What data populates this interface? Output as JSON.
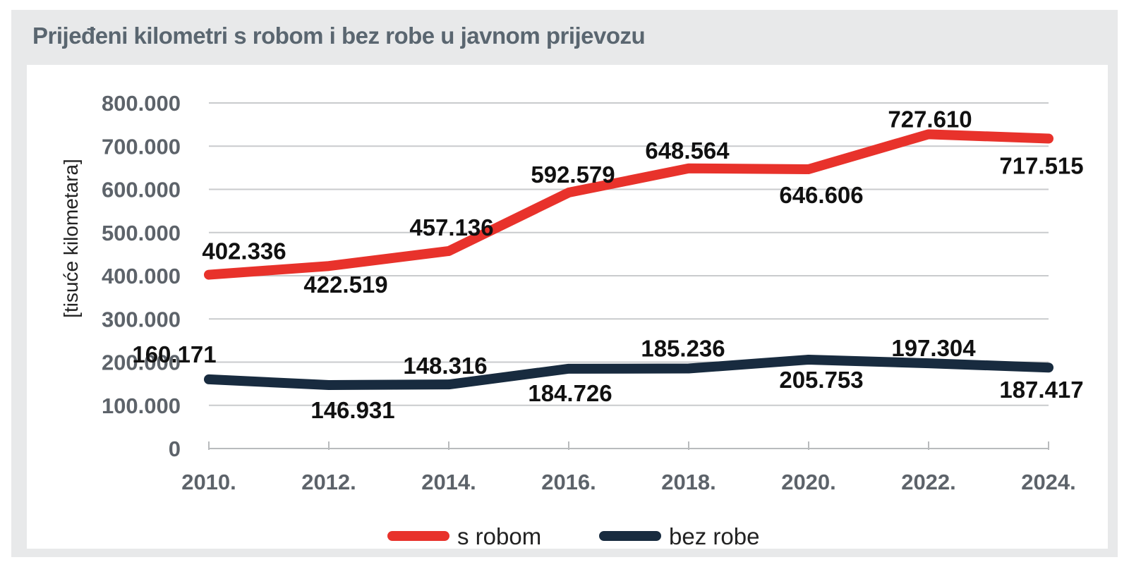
{
  "title": "Prijeđeni kilometri s robom i bez robe u javnom prijevozu",
  "chart_data": {
    "type": "line",
    "title": "Prijeđeni kilometri s robom i bez robe u javnom prijevozu",
    "xlabel": "",
    "ylabel": "[tisuće kilometara]",
    "x": [
      "2010.",
      "2012.",
      "2014.",
      "2016.",
      "2018.",
      "2020.",
      "2022.",
      "2024."
    ],
    "yticks": [
      "0",
      "100.000",
      "200.000",
      "300.000",
      "400.000",
      "500.000",
      "600.000",
      "700.000",
      "800.000"
    ],
    "ylim": [
      0,
      800000
    ],
    "grid": true,
    "legend_position": "bottom-center",
    "series": [
      {
        "name": "s robom",
        "color": "#e8322b",
        "values": [
          402336,
          422519,
          457136,
          592579,
          648564,
          646606,
          727610,
          717515
        ],
        "labels": [
          "402.336",
          "422.519",
          "457.136",
          "592.579",
          "648.564",
          "646.606",
          "727.610",
          "717.515"
        ]
      },
      {
        "name": "bez robe",
        "color": "#182b3f",
        "values": [
          160171,
          146931,
          148316,
          184726,
          185236,
          205753,
          197304,
          187417
        ],
        "labels": [
          "160.171",
          "146.931",
          "148.316",
          "184.726",
          "185.236",
          "205.753",
          "197.304",
          "187.417"
        ]
      }
    ]
  }
}
